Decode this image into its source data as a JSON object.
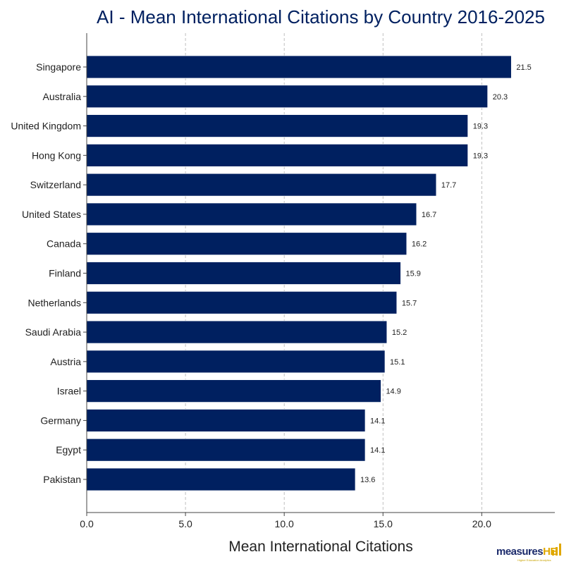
{
  "chart_data": {
    "type": "bar",
    "orientation": "horizontal",
    "title": "AI - Mean International Citations by Country 2016-2025",
    "xlabel": "Mean International Citations",
    "ylabel": "",
    "categories": [
      "Singapore",
      "Australia",
      "United Kingdom",
      "Hong Kong",
      "Switzerland",
      "United States",
      "Canada",
      "Finland",
      "Netherlands",
      "Saudi Arabia",
      "Austria",
      "Israel",
      "Germany",
      "Egypt",
      "Pakistan"
    ],
    "values": [
      21.5,
      20.3,
      19.3,
      19.3,
      17.7,
      16.7,
      16.2,
      15.9,
      15.7,
      15.2,
      15.1,
      14.9,
      14.1,
      14.1,
      13.6
    ],
    "data_labels": [
      "21.5",
      "20.3",
      "19.3",
      "19.3",
      "17.7",
      "16.7",
      "16.2",
      "15.9",
      "15.7",
      "15.2",
      "15.1",
      "14.9",
      "14.1",
      "14.1",
      "13.6"
    ],
    "xlim": [
      0,
      23.7
    ],
    "xticks": [
      "0.0",
      "5.0",
      "10.0",
      "15.0",
      "20.0"
    ],
    "grid": "vertical dashed",
    "colors": {
      "bar": "#002060",
      "title": "#002060",
      "grid": "#b0b0b0"
    }
  },
  "logo": {
    "text_main": "measures",
    "text_accent": "HE",
    "tagline": "Higher Education Analytics"
  }
}
